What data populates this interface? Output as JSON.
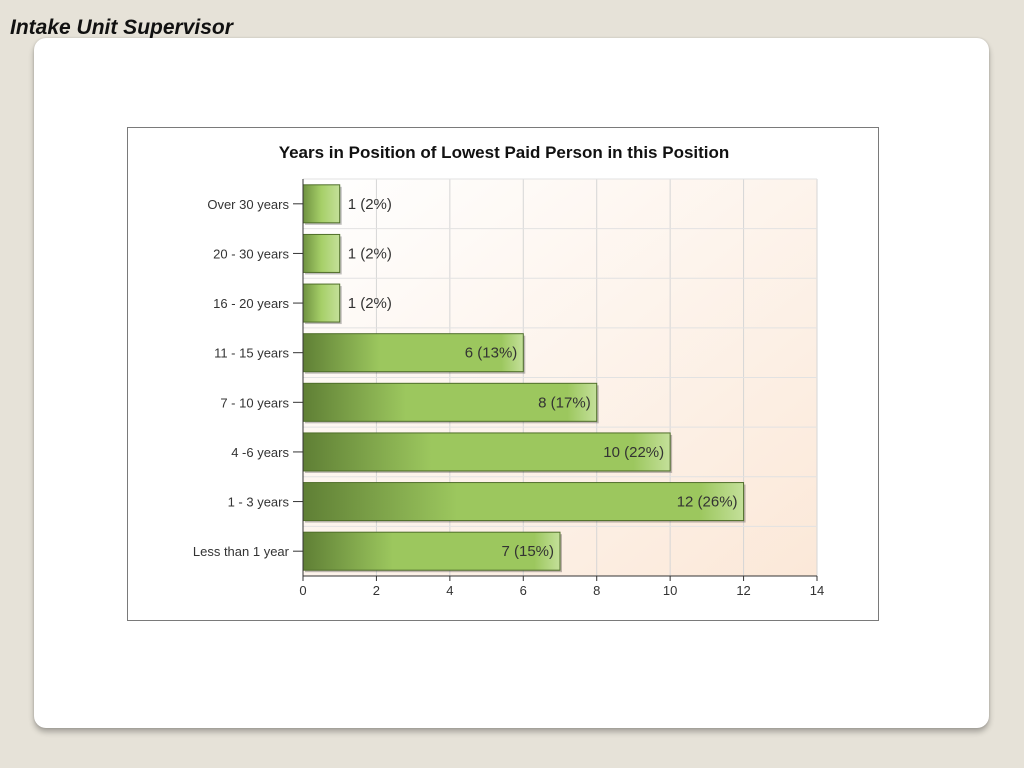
{
  "slide": {
    "title": "Intake Unit Supervisor"
  },
  "chart_data": {
    "type": "bar",
    "orientation": "horizontal",
    "title": "Years in Position of Lowest Paid Person in this Position",
    "categories": [
      "Over 30 years",
      "20 - 30 years",
      "16 - 20 years",
      "11 - 15 years",
      "7 - 10 years",
      "4 -6 years",
      "1 - 3 years",
      "Less than 1 year"
    ],
    "values": [
      1,
      1,
      1,
      6,
      8,
      10,
      12,
      7
    ],
    "data_labels": [
      "1 (2%)",
      "1 (2%)",
      "1 (2%)",
      "6 (13%)",
      "8 (17%)",
      "10 (22%)",
      "12 (26%)",
      "7 (15%)"
    ],
    "xlim": [
      0,
      14
    ],
    "x_ticks": [
      0,
      2,
      4,
      6,
      8,
      10,
      12,
      14
    ],
    "xlabel": "",
    "ylabel": "",
    "grid": true,
    "bar_color": "#8fbf5a",
    "background_gradient": [
      "#ffffff",
      "#fbe8d8"
    ]
  }
}
